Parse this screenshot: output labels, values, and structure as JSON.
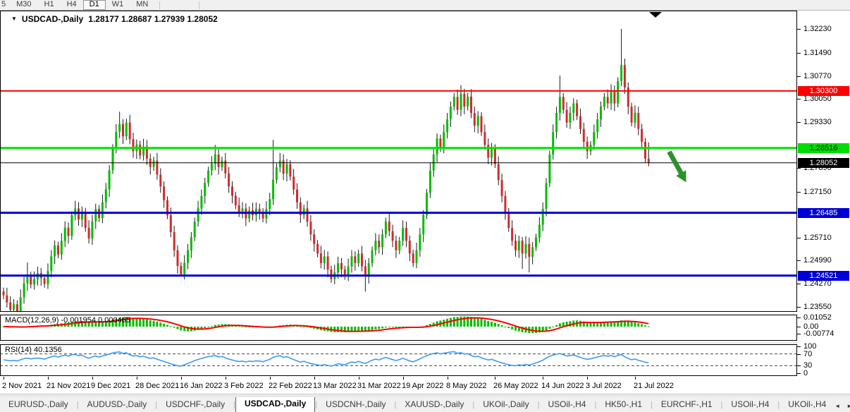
{
  "toolbar": {
    "partial_button": "5",
    "timeframes": [
      "M30",
      "H1",
      "H4",
      "D1",
      "W1",
      "MN"
    ],
    "active_timeframe": "D1"
  },
  "header": {
    "dropdown_icon": "▼",
    "symbol": "USDCAD-,Daily",
    "ohlc": "1.28177 1.28687 1.27939 1.28052"
  },
  "macd": {
    "label": "MACD(12,26,9) -0.001954 0.000465",
    "params": "12,26,9",
    "current_macd": -0.001954,
    "current_signal": 0.000465,
    "axis_ticks": [
      {
        "text": "0.01052",
        "value": 0.01052
      },
      {
        "text": "0.00",
        "value": 0.0
      },
      {
        "text": "-0.00774",
        "value": -0.00774
      }
    ],
    "histogram_color": "#00BE00",
    "signal_color": "#FF0000"
  },
  "rsi": {
    "label": "RSI(14) 40.1356",
    "period": 14,
    "current_value": 40.1356,
    "axis_ticks": [
      {
        "text": "100",
        "value": 100
      },
      {
        "text": "70",
        "value": 70
      },
      {
        "text": "30",
        "value": 30
      },
      {
        "text": "0",
        "value": 0
      }
    ],
    "levels": [
      70,
      30
    ],
    "line_color": "#3E9BEF"
  },
  "price_axis_ticks": [
    "1.32230",
    "1.31490",
    "1.30770",
    "1.30050",
    "1.29330",
    "1.27890",
    "1.27150",
    "1.25710",
    "1.24990",
    "1.24270",
    "1.23550"
  ],
  "price_badges": [
    {
      "value": "1.30300",
      "bg": "#ff0000",
      "fg": "#ffffff"
    },
    {
      "value": "1.28516",
      "bg": "#00dd00",
      "fg": "#000000"
    },
    {
      "value": "1.28052",
      "bg": "#000000",
      "fg": "#ffffff"
    },
    {
      "value": "1.26485",
      "bg": "#0000d6",
      "fg": "#ffffff"
    },
    {
      "value": "1.24521",
      "bg": "#0000d6",
      "fg": "#ffffff"
    }
  ],
  "tabs": {
    "items": [
      "EURUSD-,Daily",
      "AUDUSD-,Daily",
      "USDCHF-,Daily",
      "USDCAD-,Daily",
      "USDCNH-,Daily",
      "XAUUSD-,Daily",
      "UKOil-,Daily",
      "USOil-,H4",
      "HK50-,H1",
      "EURCHF-,H1",
      "USOil-,H4",
      "UKOil-,H4"
    ],
    "active_index": 3,
    "scroll_left_icon": "◄",
    "scroll_right_icon": "►"
  },
  "chart_data": {
    "type": "candlestick",
    "symbol": "USDCAD",
    "timeframe": "Daily",
    "current_candle": {
      "open": 1.28177,
      "high": 1.28687,
      "low": 1.27939,
      "close": 1.28052
    },
    "ylim": [
      1.2339,
      1.32815
    ],
    "grid": false,
    "bull_color": "#00BE00",
    "bear_color": "#D22B2B",
    "wick_color": "#1a1a1a",
    "first_open": 1.2402,
    "closes": [
      1.239,
      1.2368,
      1.2345,
      1.2362,
      1.2338,
      1.2384,
      1.2428,
      1.2452,
      1.2424,
      1.2441,
      1.246,
      1.2444,
      1.2426,
      1.2466,
      1.2512,
      1.2546,
      1.2518,
      1.2561,
      1.2602,
      1.2576,
      1.2641,
      1.2662,
      1.2628,
      1.2652,
      1.2601,
      1.2568,
      1.2622,
      1.2661,
      1.2632,
      1.2682,
      1.2722,
      1.2782,
      1.2851,
      1.2902,
      1.2926,
      1.2888,
      1.2931,
      1.2879,
      1.2841,
      1.2862,
      1.2828,
      1.2856,
      1.2818,
      1.2792,
      1.2812,
      1.2768,
      1.2731,
      1.2688,
      1.2641,
      1.2588,
      1.2531,
      1.2482,
      1.2456,
      1.2492,
      1.2531,
      1.2572,
      1.2621,
      1.2662,
      1.2701,
      1.2742,
      1.2781,
      1.2802,
      1.2831,
      1.2792,
      1.2812,
      1.2772,
      1.2731,
      1.2702,
      1.2672,
      1.2651,
      1.2662,
      1.2631,
      1.2656,
      1.2641,
      1.2661,
      1.2651,
      1.2631,
      1.2661,
      1.2691,
      1.2752,
      1.2791,
      1.2812,
      1.2771,
      1.2801,
      1.2762,
      1.2721,
      1.2681,
      1.2641,
      1.2662,
      1.2621,
      1.2581,
      1.2551,
      1.2521,
      1.2491,
      1.2512,
      1.2471,
      1.2441,
      1.2462,
      1.2491,
      1.2471,
      1.2451,
      1.2481,
      1.2512,
      1.2491,
      1.2521,
      1.2481,
      1.2451,
      1.2491,
      1.2531,
      1.2561,
      1.2541,
      1.2581,
      1.2621,
      1.2591,
      1.2561,
      1.2531,
      1.2561,
      1.2601,
      1.2561,
      1.2521,
      1.2491,
      1.2531,
      1.2581,
      1.2641,
      1.2711,
      1.2781,
      1.2831,
      1.2881,
      1.2851,
      1.2901,
      1.2941,
      1.2981,
      1.3011,
      1.2971,
      1.3021,
      1.2981,
      1.3012,
      1.2961,
      1.2921,
      1.2951,
      1.2901,
      1.2861,
      1.2821,
      1.2851,
      1.2801,
      1.2751,
      1.2701,
      1.2651,
      1.2601,
      1.2561,
      1.2531,
      1.2561,
      1.2521,
      1.2551,
      1.2511,
      1.2541,
      1.2571,
      1.2611,
      1.2661,
      1.2741,
      1.2831,
      1.2901,
      1.2961,
      1.3011,
      1.2971,
      1.2931,
      1.2961,
      1.2991,
      1.2951,
      1.2911,
      1.2871,
      1.2841,
      1.2861,
      1.2901,
      1.2941,
      1.2981,
      1.3011,
      1.2991,
      1.3031,
      1.2991,
      1.3061,
      1.3111,
      1.3041,
      1.2981,
      1.2931,
      1.2961,
      1.2911,
      1.2871,
      1.2818,
      1.28052
    ],
    "wick_overrides": {
      "4": {
        "low": 1.2332
      },
      "7": {
        "high": 1.2493
      },
      "34": {
        "high": 1.2965
      },
      "52": {
        "low": 1.245
      },
      "62": {
        "high": 1.2861
      },
      "79": {
        "high": 1.2877,
        "low": 1.2673
      },
      "106": {
        "low": 1.2402
      },
      "134": {
        "high": 1.3048
      },
      "152": {
        "low": 1.2473
      },
      "154": {
        "low": 1.2462
      },
      "163": {
        "high": 1.3078
      },
      "181": {
        "high": 1.3224
      },
      "189": {
        "high": 1.28687,
        "low": 1.27939
      }
    },
    "last_open_override": 1.28177,
    "hlines": [
      {
        "price": 1.303,
        "color": "#ff0000",
        "width": 2
      },
      {
        "price": 1.28516,
        "color": "#00e400",
        "width": 3
      },
      {
        "price": 1.28052,
        "color": "#000000",
        "width": 1
      },
      {
        "price": 1.26485,
        "color": "#0000d6",
        "width": 3
      },
      {
        "price": 1.24521,
        "color": "#0000d6",
        "width": 3
      }
    ],
    "x_labels": [
      {
        "label": "2 Nov 2021",
        "idx": 0
      },
      {
        "label": "21 Nov 2021",
        "idx": 13
      },
      {
        "label": "9 Dec 2021",
        "idx": 26
      },
      {
        "label": "28 Dec 2021",
        "idx": 39
      },
      {
        "label": "16 Jan 2022",
        "idx": 52
      },
      {
        "label": "3 Feb 2022",
        "idx": 65
      },
      {
        "label": "22 Feb 2022",
        "idx": 78
      },
      {
        "label": "13 Mar 2022",
        "idx": 91
      },
      {
        "label": "31 Mar 2022",
        "idx": 104
      },
      {
        "label": "19 Apr 2022",
        "idx": 117
      },
      {
        "label": "8 May 2022",
        "idx": 130
      },
      {
        "label": "26 May 2022",
        "idx": 144
      },
      {
        "label": "14 Jun 2022",
        "idx": 158
      },
      {
        "label": "3 Jul 2022",
        "idx": 171
      },
      {
        "label": "21 Jul 2022",
        "idx": 185
      }
    ],
    "annotations": {
      "sell_arrow": {
        "color": "#2f8f2f",
        "from": {
          "idx": 195,
          "price": 1.284
        },
        "to": {
          "idx": 200,
          "price": 1.2744
        }
      },
      "shift_marker": {
        "idx": 191
      }
    }
  }
}
